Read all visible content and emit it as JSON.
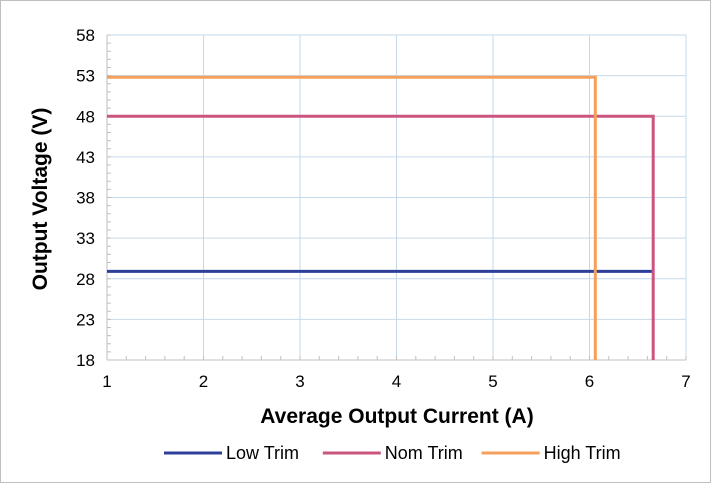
{
  "chart_data": {
    "type": "line",
    "title": "",
    "xlabel": "Average Output Current (A)",
    "ylabel": "Output Voltage (V)",
    "xlim": [
      1,
      7
    ],
    "ylim": [
      18,
      58
    ],
    "x_ticks": [
      1,
      2,
      3,
      4,
      5,
      6,
      7
    ],
    "y_ticks": [
      18,
      23,
      28,
      33,
      38,
      43,
      48,
      53,
      58
    ],
    "grid": true,
    "legend_position": "bottom",
    "series": [
      {
        "name": "Low Trim",
        "color": "#2e3f9a",
        "points": [
          [
            1,
            28.9
          ],
          [
            6.66,
            28.9
          ]
        ]
      },
      {
        "name": "Nom Trim",
        "color": "#cc5580",
        "points": [
          [
            1,
            48
          ],
          [
            6.66,
            48
          ],
          [
            6.66,
            18
          ]
        ]
      },
      {
        "name": "High Trim",
        "color": "#f4a05c",
        "points": [
          [
            1,
            52.8
          ],
          [
            6.06,
            52.8
          ],
          [
            6.06,
            18
          ]
        ]
      }
    ]
  },
  "colors": {
    "grid": "#c6d9ea",
    "axis": "#bfbfbf",
    "frame": "#bfbfbf"
  }
}
